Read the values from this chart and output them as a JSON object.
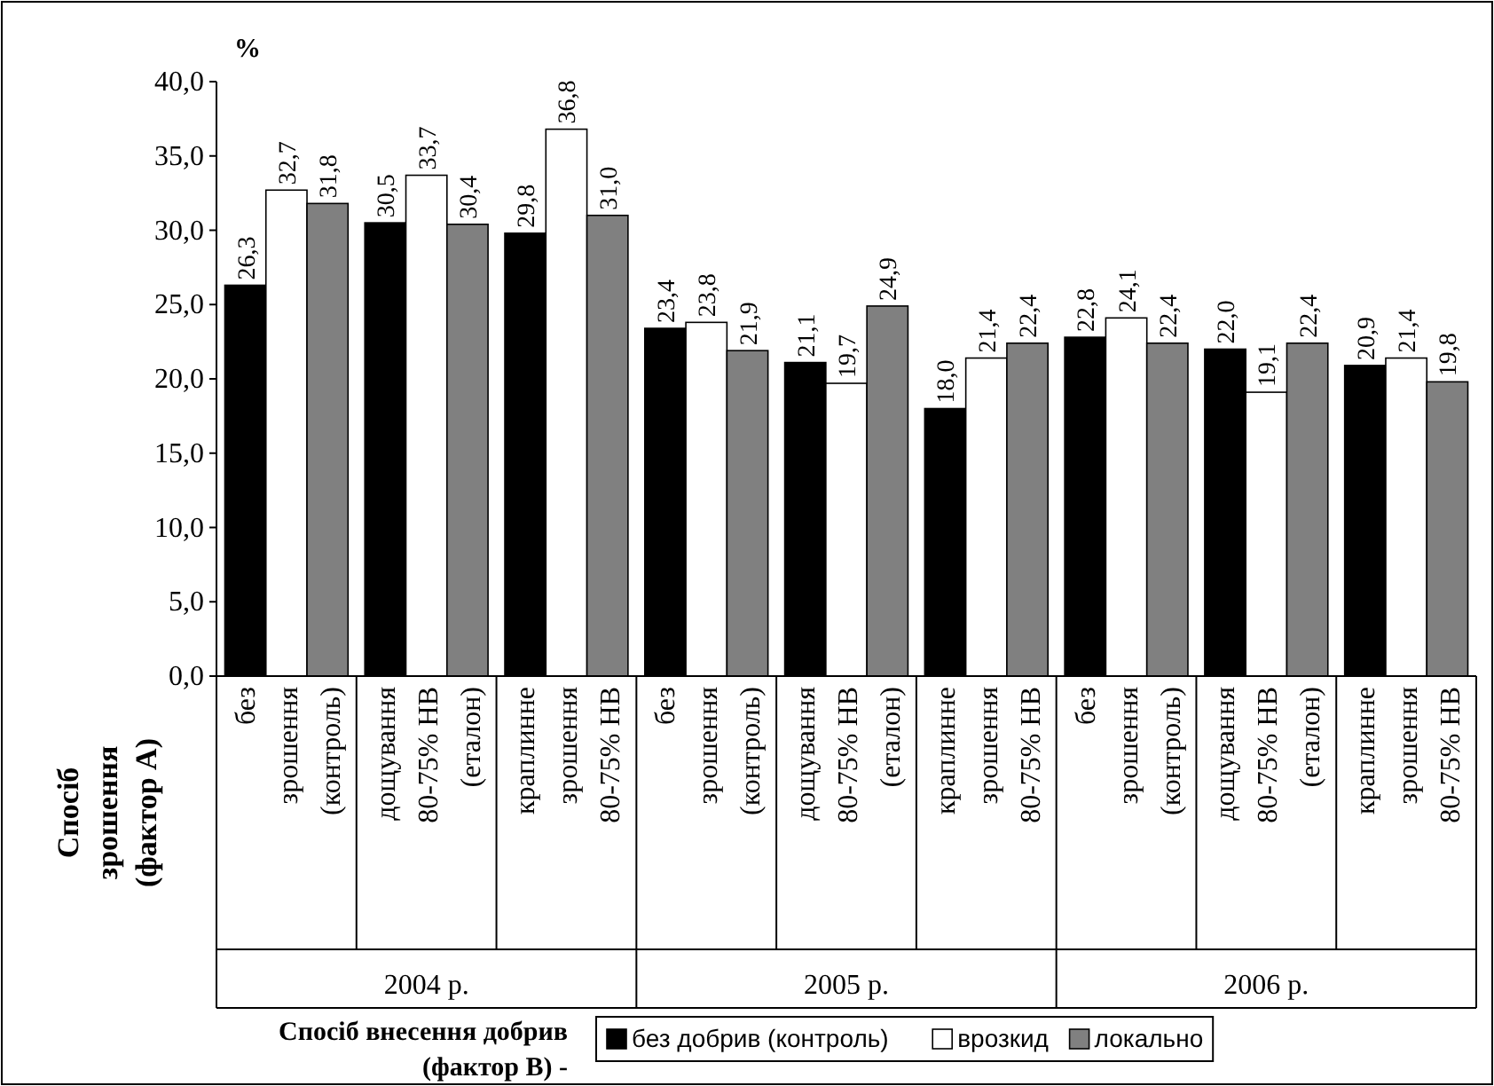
{
  "chart_data": {
    "type": "bar",
    "ylabel": "%",
    "legend_title": "Спосіб внесення добрив\n(фактор В) -",
    "categories": [
      "без\nзрошення\n(контроль)",
      "дощування\n80-75% НВ\n(еталон)",
      "краплинне\nзрошення\n80-75% НВ",
      "без\nзрошення\n(контроль)",
      "дощування\n80-75% НВ\n(еталон)",
      "краплинне\nзрошення\n80-75% НВ",
      "без\nзрошення\n(контроль)",
      "дощування\n80-75% НВ\n(еталон)",
      "краплинне\nзрошення\n80-75% НВ"
    ],
    "annotations": [
      "2004 р.",
      "2005 р.",
      "2006 р.",
      "Спосіб\nзрошення\n(фактор А)"
    ],
    "series": [
      {
        "name": "без добрив (контроль)",
        "color": "#000000",
        "values": [
          26.3,
          30.5,
          29.8,
          23.4,
          21.1,
          18.0,
          22.8,
          22.0,
          20.9
        ],
        "value_labels": [
          "26,3",
          "30,5",
          "29,8",
          "23,4",
          "21,1",
          "18,0",
          "22,8",
          "22,0",
          "20,9"
        ]
      },
      {
        "name": "врозкид",
        "color": "#ffffff",
        "values": [
          32.7,
          33.7,
          36.8,
          23.8,
          19.7,
          21.4,
          24.1,
          19.1,
          21.4
        ],
        "value_labels": [
          "32,7",
          "33,7",
          "36,8",
          "23,8",
          "19,7",
          "21,4",
          "24,1",
          "19,1",
          "21,4"
        ]
      },
      {
        "name": "локально",
        "color": "#808080",
        "values": [
          31.8,
          30.4,
          31.0,
          21.9,
          24.9,
          22.4,
          22.4,
          22.4,
          19.8
        ],
        "value_labels": [
          "31,8",
          "30,4",
          "31,0",
          "21,9",
          "24,9",
          "22,4",
          "22,4",
          "22,4",
          "19,8"
        ]
      }
    ],
    "ylim": [
      0,
      40
    ],
    "yticks": [
      {
        "value": 0,
        "label": "0,0"
      },
      {
        "value": 5,
        "label": "5,0"
      },
      {
        "value": 10,
        "label": "10,0"
      },
      {
        "value": 15,
        "label": "15,0"
      },
      {
        "value": 20,
        "label": "20,0"
      },
      {
        "value": 25,
        "label": "25,0"
      },
      {
        "value": 30,
        "label": "30,0"
      },
      {
        "value": 35,
        "label": "35,0"
      },
      {
        "value": 40,
        "label": "40,0"
      }
    ],
    "legend": "bottom",
    "grid": false
  }
}
